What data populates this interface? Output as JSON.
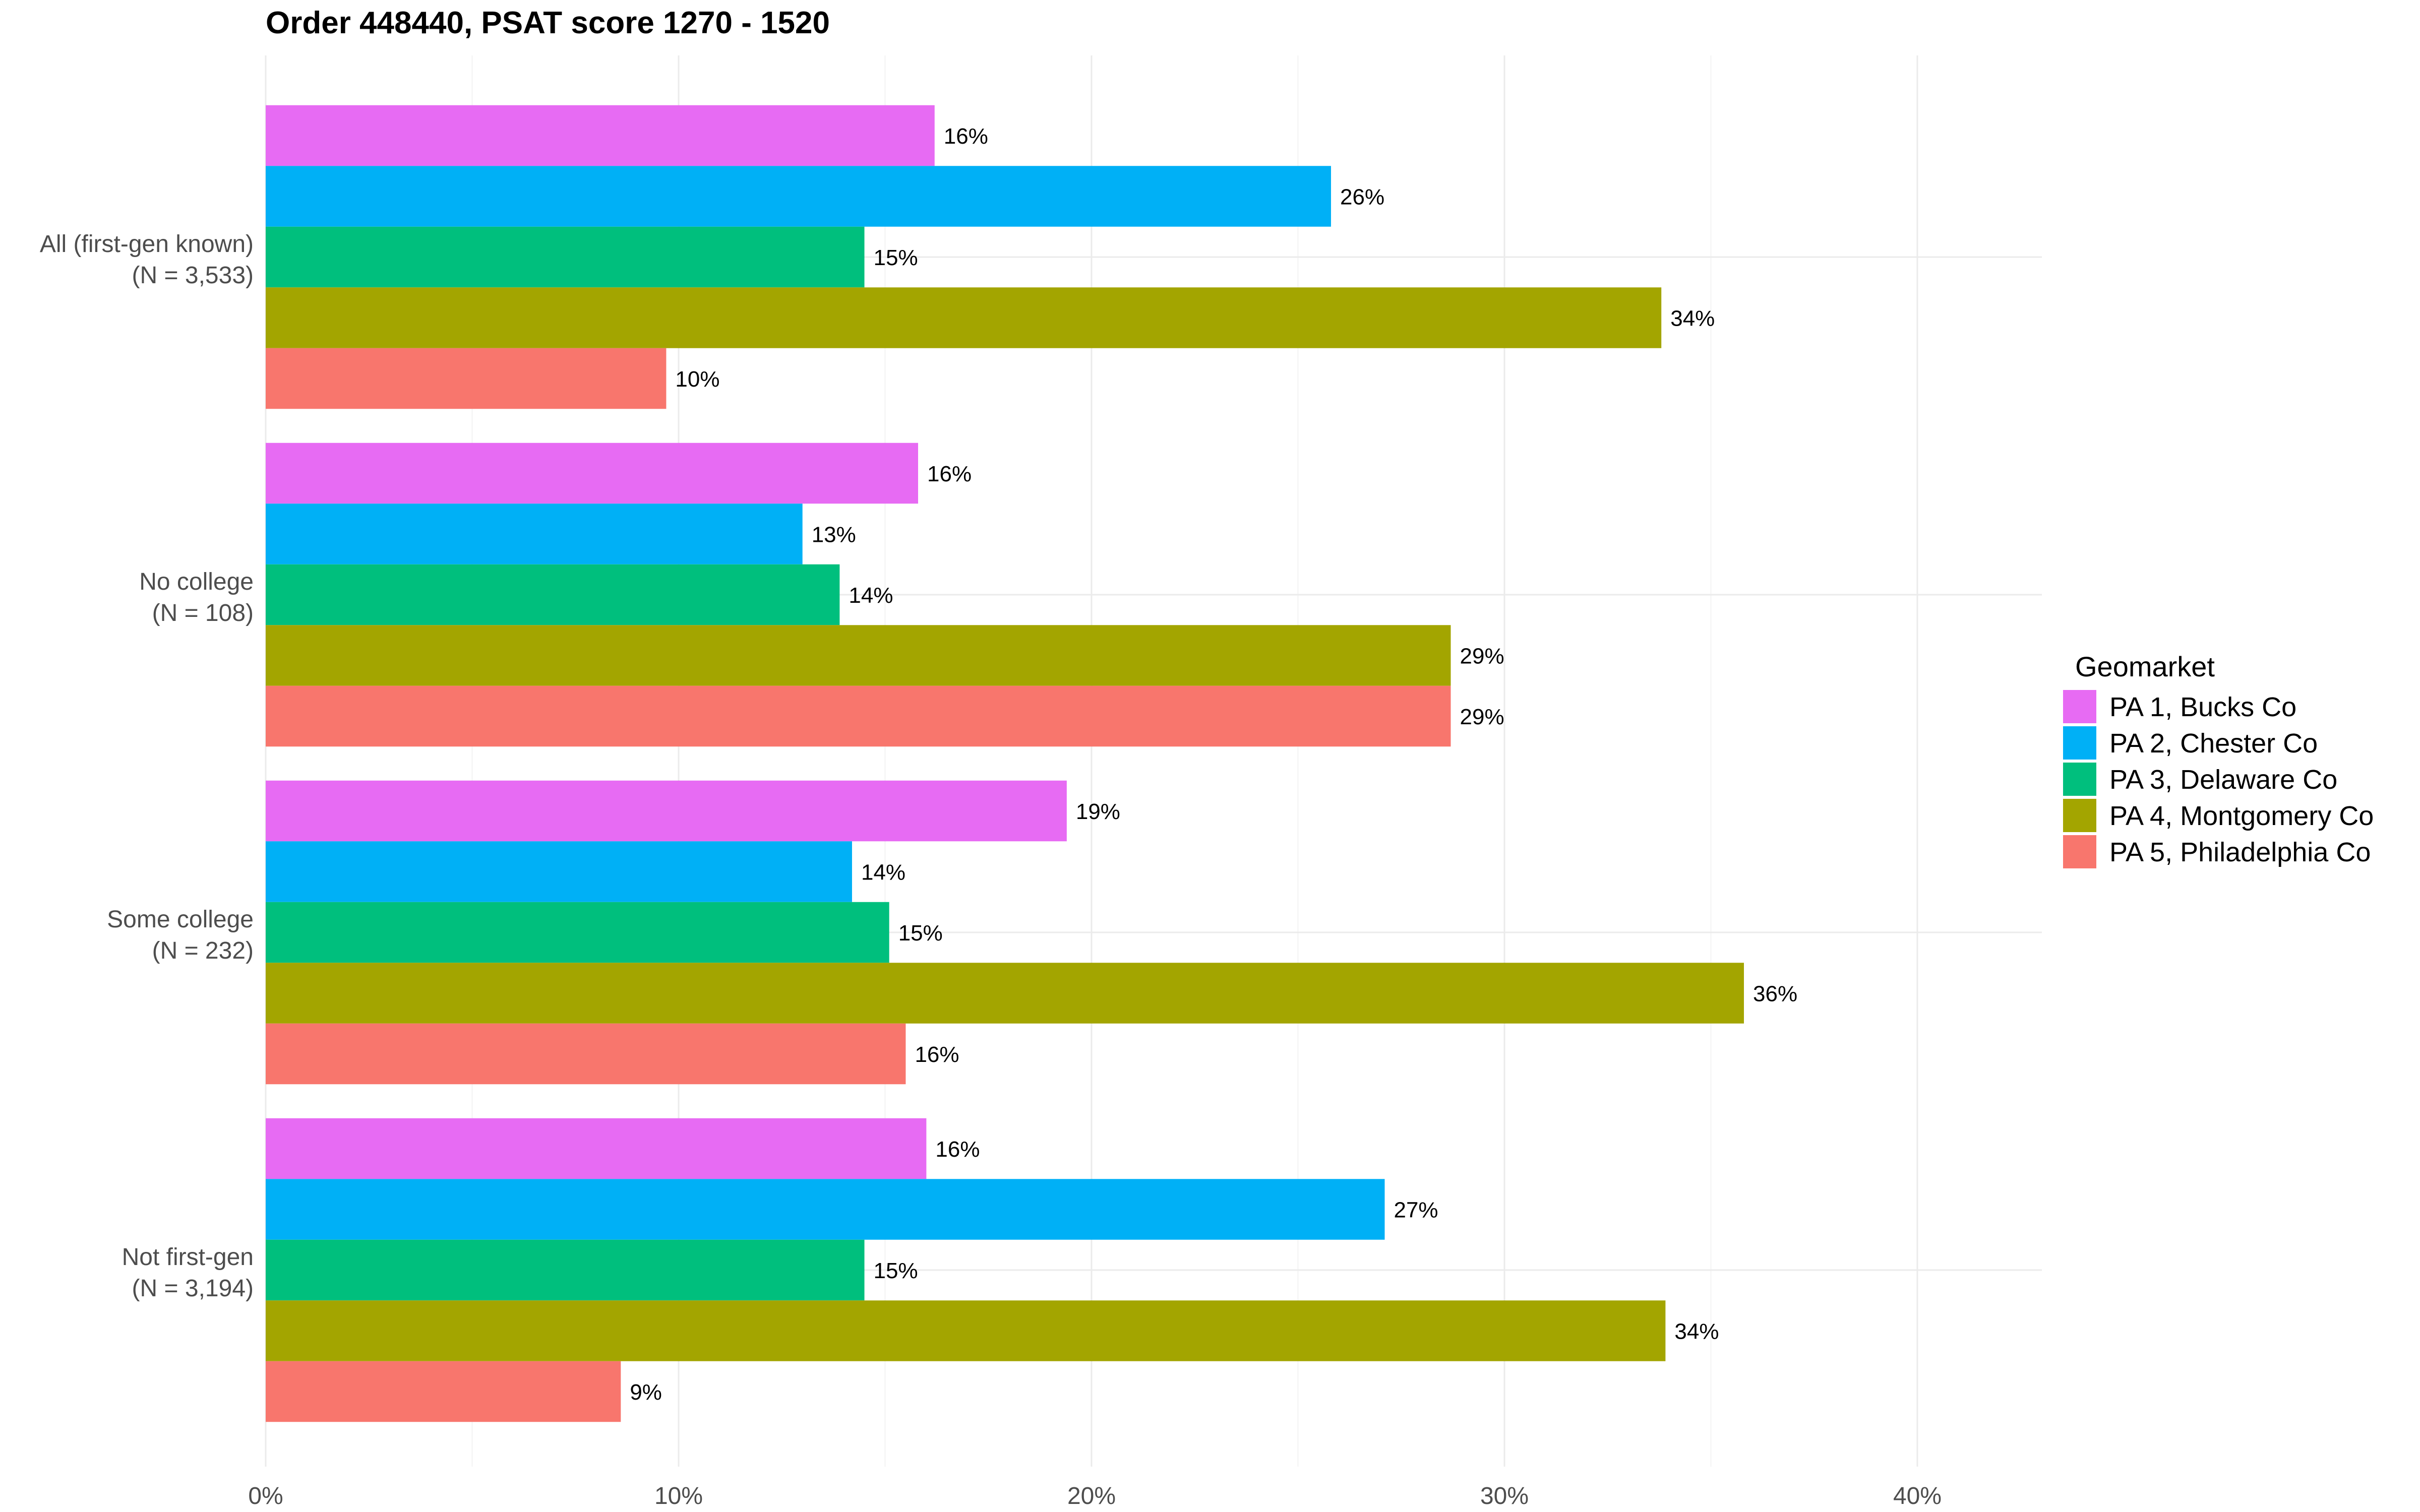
{
  "chart_data": {
    "type": "bar",
    "orientation": "horizontal",
    "title": "Order 448440, PSAT score 1270 - 1520",
    "xlabel": "",
    "ylabel": "",
    "xlim": [
      0,
      43
    ],
    "x_ticks": [
      0,
      10,
      20,
      30,
      40
    ],
    "x_tick_labels": [
      "0%",
      "10%",
      "20%",
      "30%",
      "40%"
    ],
    "grid": true,
    "legend": {
      "title": "Geomarket",
      "position": "right"
    },
    "categories": [
      {
        "name": "All (first-gen known)",
        "n_label": "(N = 3,533)"
      },
      {
        "name": "No college",
        "n_label": "(N = 108)"
      },
      {
        "name": "Some college",
        "n_label": "(N = 232)"
      },
      {
        "name": "Not first-gen",
        "n_label": "(N = 3,194)"
      }
    ],
    "series": [
      {
        "name": "PA 1, Bucks Co",
        "color": "#E76BF3",
        "values": [
          16.2,
          15.8,
          19.4,
          16.0
        ],
        "labels": [
          "16%",
          "16%",
          "19%",
          "16%"
        ]
      },
      {
        "name": "PA 2, Chester Co",
        "color": "#00B0F6",
        "values": [
          25.8,
          13.0,
          14.2,
          27.1
        ],
        "labels": [
          "26%",
          "13%",
          "14%",
          "27%"
        ]
      },
      {
        "name": "PA 3, Delaware Co",
        "color": "#00BF7D",
        "values": [
          14.5,
          13.9,
          15.1,
          14.5
        ],
        "labels": [
          "15%",
          "14%",
          "15%",
          "15%"
        ]
      },
      {
        "name": "PA 4, Montgomery Co",
        "color": "#A3A500",
        "values": [
          33.8,
          28.7,
          35.8,
          33.9
        ],
        "labels": [
          "34%",
          "29%",
          "36%",
          "34%"
        ]
      },
      {
        "name": "PA 5, Philadelphia Co",
        "color": "#F8766D",
        "values": [
          9.7,
          28.7,
          15.5,
          8.6
        ],
        "labels": [
          "10%",
          "29%",
          "16%",
          "9%"
        ]
      }
    ]
  }
}
